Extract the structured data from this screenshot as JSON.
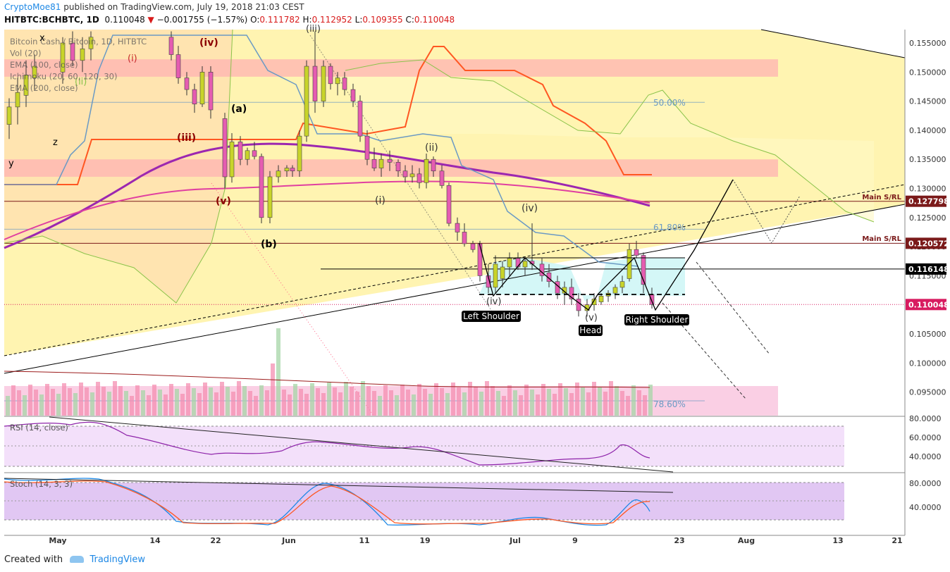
{
  "header": {
    "author": "CryptoMoe81",
    "published": "published on TradingView.com, July 19, 2018 21:03 CEST"
  },
  "symbol_line": {
    "symbol": "HITBTC:BCHBTC, 1D",
    "last": "0.110048",
    "change": "−0.001755 (−1.57%)",
    "o_label": "O:",
    "o": "0.111782",
    "h_label": "H:",
    "h": "0.112952",
    "l_label": "L:",
    "l": "0.109355",
    "c_label": "C:",
    "c": "0.110048"
  },
  "legend": [
    "Bitcoin Cash / Bitcoin, 1D, HITBTC",
    "Vol (20)",
    "EMA (100, close)",
    "Ichimoku (20, 60, 120, 30)",
    "EMA (200, close)"
  ],
  "price_axis": [
    "0.155000",
    "0.150000",
    "0.145000",
    "0.140000",
    "0.135000",
    "0.130000",
    "0.125000",
    "0.120000",
    "0.115000",
    "0.110000",
    "0.105000",
    "0.100000",
    "0.095000"
  ],
  "price_tags": [
    {
      "label": "0.127798",
      "color": "#7b1a1a"
    },
    {
      "label": "0.120572",
      "color": "#7b1a1a"
    },
    {
      "label": "0.116148",
      "color": "#000000"
    },
    {
      "label": "0.110048",
      "color": "#d81b60"
    }
  ],
  "level_labels": [
    "Main S/RL",
    "Main S/RL"
  ],
  "fib_labels": [
    "50.00%",
    "61.80%",
    "78.60%"
  ],
  "wave_labels": [
    "(a)",
    "(b)",
    "(iii)",
    "(iv)",
    "(v)",
    "(i)",
    "(ii)",
    "(iv)",
    "(i)",
    "(ii)",
    "(iii)",
    "(iv)",
    "(v)",
    "x",
    "y",
    "z"
  ],
  "pattern_labels": [
    "Left Shoulder",
    "Head",
    "Right Shoulder"
  ],
  "rsi": {
    "title": "RSI (14, close)",
    "axis": [
      "80.0000",
      "60.0000",
      "40.0000"
    ]
  },
  "stoch": {
    "title": "Stoch (14, 3, 3)",
    "axis": [
      "80.0000",
      "40.0000"
    ]
  },
  "time_axis": [
    "May",
    "14",
    "22",
    "Jun",
    "11",
    "19",
    "Jul",
    "9",
    "23",
    "Aug",
    "13",
    "21"
  ],
  "footer": {
    "created": "Created with",
    "brand": "TradingView"
  },
  "colors": {
    "up": "#c8d42a",
    "down": "#e55cb1",
    "ema100": "#9c27b0",
    "ema200": "#e040a0",
    "tenkan": "#ff5722",
    "kijun": "#6b9ac4",
    "up_cloud": "#fff3a8",
    "down_cloud": "#ffe0b0",
    "resistance_zone": "#ffb3b3"
  },
  "chart_data": {
    "type": "candlestick",
    "symbol": "HITBTC:BCHBTC",
    "timeframe": "1D",
    "ylim": [
      0.093,
      0.157
    ],
    "ohlc_recent": [
      {
        "date": "2018-06-20",
        "o": 0.13,
        "h": 0.131,
        "l": 0.123,
        "c": 0.1235
      },
      {
        "date": "2018-06-22",
        "o": 0.1235,
        "h": 0.1245,
        "l": 0.119,
        "c": 0.1205
      },
      {
        "date": "2018-06-26",
        "o": 0.1205,
        "h": 0.121,
        "l": 0.114,
        "c": 0.115
      },
      {
        "date": "2018-07-01",
        "o": 0.114,
        "h": 0.1185,
        "l": 0.112,
        "c": 0.1175
      },
      {
        "date": "2018-07-04",
        "o": 0.1175,
        "h": 0.124,
        "l": 0.116,
        "c": 0.1165
      },
      {
        "date": "2018-07-08",
        "o": 0.1155,
        "h": 0.1165,
        "l": 0.111,
        "c": 0.112
      },
      {
        "date": "2018-07-11",
        "o": 0.1105,
        "h": 0.113,
        "l": 0.109,
        "c": 0.1125
      },
      {
        "date": "2018-07-15",
        "o": 0.115,
        "h": 0.1205,
        "l": 0.114,
        "c": 0.1195
      },
      {
        "date": "2018-07-17",
        "o": 0.1195,
        "h": 0.12,
        "l": 0.113,
        "c": 0.1135
      },
      {
        "date": "2018-07-19",
        "o": 0.111782,
        "h": 0.112952,
        "l": 0.109355,
        "c": 0.110048
      }
    ],
    "levels": [
      0.127798,
      0.120572,
      0.116148,
      0.110048
    ],
    "fib_levels": [
      {
        "label": "50.00%",
        "price": 0.1448
      },
      {
        "label": "61.80%",
        "price": 0.123
      },
      {
        "label": "78.60%",
        "price": 0.0935
      }
    ],
    "resistance_zones": [
      [
        0.1492,
        0.1522
      ],
      [
        0.132,
        0.135
      ]
    ],
    "pattern": "inverse head and shoulders",
    "rsi_value": 40.5,
    "stoch_k": 35,
    "stoch_d": 45
  }
}
